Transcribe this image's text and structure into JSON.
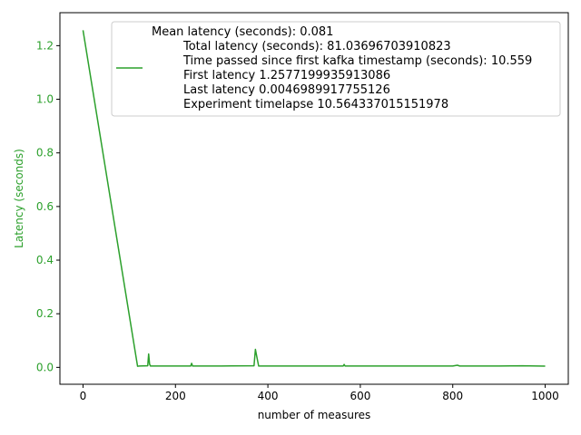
{
  "chart_data": {
    "type": "line",
    "title": "",
    "xlabel": "number of measures",
    "ylabel": "Latency (seconds)",
    "xlim": [
      -50,
      1050
    ],
    "ylim": [
      -0.063,
      1.323
    ],
    "x_ticks": [
      0,
      200,
      400,
      600,
      800,
      1000
    ],
    "x_tick_labels": [
      "0",
      "200",
      "400",
      "600",
      "800",
      "1000"
    ],
    "y_ticks": [
      0.0,
      0.2,
      0.4,
      0.6,
      0.8,
      1.0,
      1.2
    ],
    "y_tick_labels": [
      "0.0",
      "0.2",
      "0.4",
      "0.6",
      "0.8",
      "1.0",
      "1.2"
    ],
    "grid": false,
    "legend_position": "top-right",
    "colors": {
      "series": "#2ca02c",
      "ylabel": "#2ca02c",
      "ytick_labels": "#2ca02c"
    },
    "series": [
      {
        "name": "Mean latency (seconds): 0.081\n        Total latency (seconds): 81.03696703910823\n        Time passed since first kafka timestamp (seconds): 10.559\n        First latency 1.2577199935913086\n        Last latency 0.0046989917755126\n        Experiment timelapse 10.564337015151978",
        "legend_lines": [
          "Mean latency (seconds): 0.081",
          "Total latency (seconds): 81.03696703910823",
          "Time passed since first kafka timestamp (seconds): 10.559",
          "First latency 1.2577199935913086",
          "Last latency 0.0046989917755126",
          "Experiment timelapse 10.564337015151978"
        ],
        "x": [
          0,
          118,
          122,
          140,
          142,
          144,
          146,
          150,
          200,
          233,
          235,
          237,
          300,
          370,
          373,
          376,
          380,
          385,
          430,
          500,
          563,
          565,
          567,
          650,
          700,
          800,
          810,
          815,
          900,
          950,
          1000
        ],
        "y": [
          1.2577,
          0.004,
          0.005,
          0.006,
          0.05,
          0.012,
          0.005,
          0.005,
          0.005,
          0.005,
          0.015,
          0.005,
          0.005,
          0.006,
          0.067,
          0.04,
          0.005,
          0.005,
          0.005,
          0.005,
          0.005,
          0.011,
          0.005,
          0.005,
          0.005,
          0.005,
          0.008,
          0.005,
          0.005,
          0.006,
          0.0047
        ]
      }
    ]
  }
}
